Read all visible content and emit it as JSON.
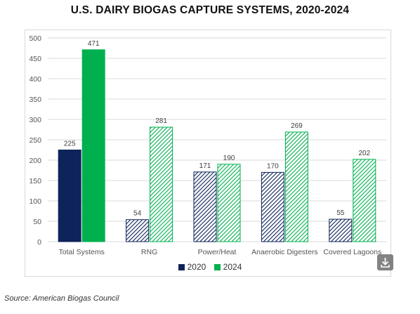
{
  "chart_data": {
    "type": "bar",
    "title": "U.S. DAIRY BIOGAS CAPTURE SYSTEMS, 2020-2024",
    "categories": [
      "Total Systems",
      "RNG",
      "Power/Heat",
      "Anaerobic Digesters",
      "Covered Lagoons"
    ],
    "series": [
      {
        "name": "2020",
        "values": [
          225,
          54,
          171,
          170,
          55
        ],
        "color": "#0d2359",
        "fill": "solid"
      },
      {
        "name": "2024",
        "values": [
          471,
          281,
          190,
          269,
          202
        ],
        "color": "#00b04f",
        "fill": "solid-first-then-hatched"
      }
    ],
    "hatched_note": "2020 bars hatched for all but first category; 2024 bars hatched for all but first category",
    "ylim": [
      0,
      500
    ],
    "yticks": [
      0,
      50,
      100,
      150,
      200,
      250,
      300,
      350,
      400,
      450,
      500
    ],
    "grid": true,
    "legend": "bottom",
    "source": "Source: American Biogas Council"
  },
  "ui": {
    "download_icon": "download-icon"
  }
}
